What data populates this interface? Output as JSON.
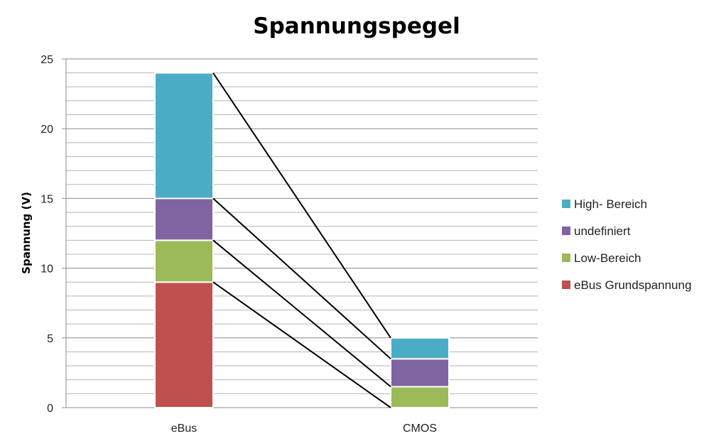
{
  "chart_data": {
    "type": "bar",
    "stacked": true,
    "title": "Spannungspegel",
    "xlabel": "",
    "ylabel": "Spannung (V)",
    "ylim": [
      0,
      25
    ],
    "y_major_ticks": [
      0,
      5,
      10,
      15,
      20,
      25
    ],
    "y_minor_step": 1,
    "grid": true,
    "legend_position": "right",
    "categories": [
      "eBus",
      "CMOS"
    ],
    "series": [
      {
        "name": "eBus Grundspannung",
        "color": "#c0504d",
        "values": [
          9,
          0
        ]
      },
      {
        "name": "Low-Bereich",
        "color": "#9bbb59",
        "values": [
          3,
          1.5
        ]
      },
      {
        "name": "undefiniert",
        "color": "#8064a2",
        "values": [
          3,
          2
        ]
      },
      {
        "name": "High- Bereich",
        "color": "#4bacc6",
        "values": [
          9,
          1.5
        ]
      }
    ],
    "connector_lines": true
  }
}
